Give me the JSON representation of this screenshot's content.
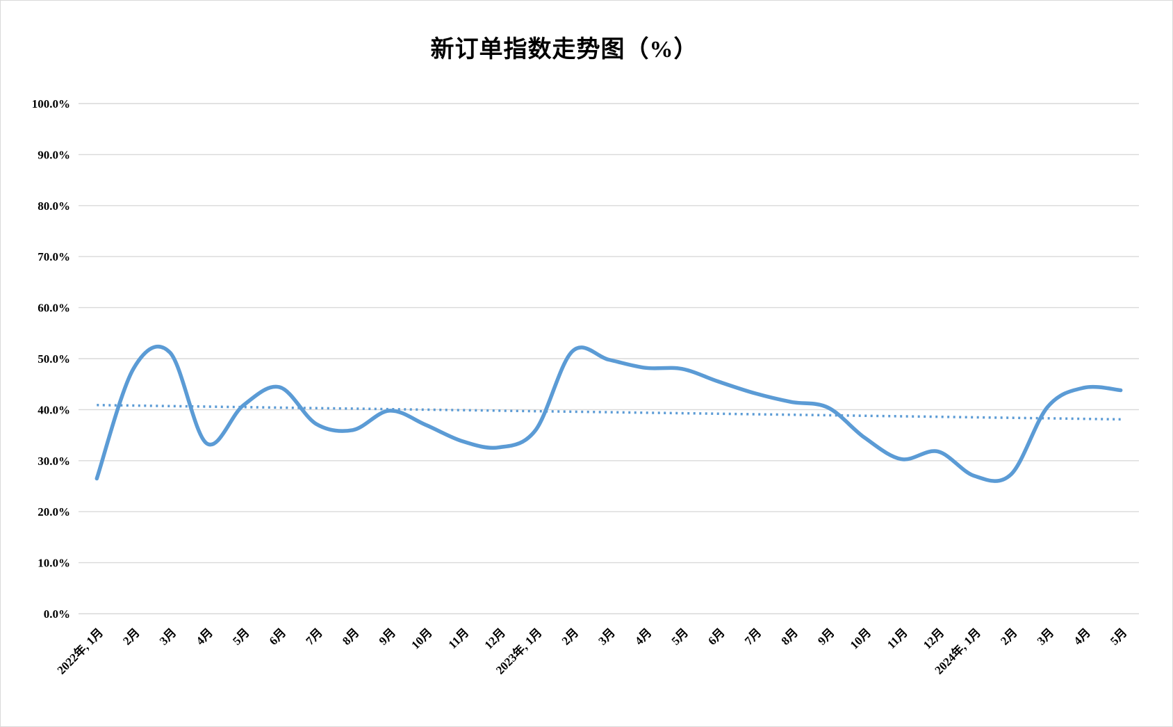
{
  "chart_data": {
    "type": "line",
    "title": "新订单指数走势图（%）",
    "x_labels": [
      "2022年, 1月",
      "2月",
      "3月",
      "4月",
      "5月",
      "6月",
      "7月",
      "8月",
      "9月",
      "10月",
      "11月",
      "12月",
      "2023年, 1月",
      "2月",
      "3月",
      "4月",
      "5月",
      "6月",
      "7月",
      "8月",
      "9月",
      "10月",
      "11月",
      "12月",
      "2024年, 1月",
      "2月",
      "3月",
      "4月",
      "5月"
    ],
    "series": [
      {
        "name": "新订单指数",
        "color": "#5B9BD5",
        "values": [
          26.5,
          48.0,
          51.2,
          33.4,
          40.8,
          44.4,
          37.2,
          36.0,
          39.8,
          37.0,
          33.8,
          32.6,
          36.0,
          51.4,
          49.8,
          48.2,
          48.0,
          45.5,
          43.2,
          41.5,
          40.4,
          34.5,
          30.3,
          31.8,
          27.0,
          27.3,
          40.5,
          44.3,
          43.8
        ]
      }
    ],
    "trendline": {
      "style": "dotted",
      "color": "#5B9BD5",
      "start_value": 40.9,
      "end_value": 38.1
    },
    "y_axis": {
      "min": 0,
      "max": 100,
      "step": 10,
      "tick_labels": [
        "0.0%",
        "10.0%",
        "20.0%",
        "30.0%",
        "40.0%",
        "50.0%",
        "60.0%",
        "70.0%",
        "80.0%",
        "90.0%",
        "100.0%"
      ]
    },
    "grid": true,
    "gridline_color": "#D9D9D9",
    "legend_position": "none"
  }
}
